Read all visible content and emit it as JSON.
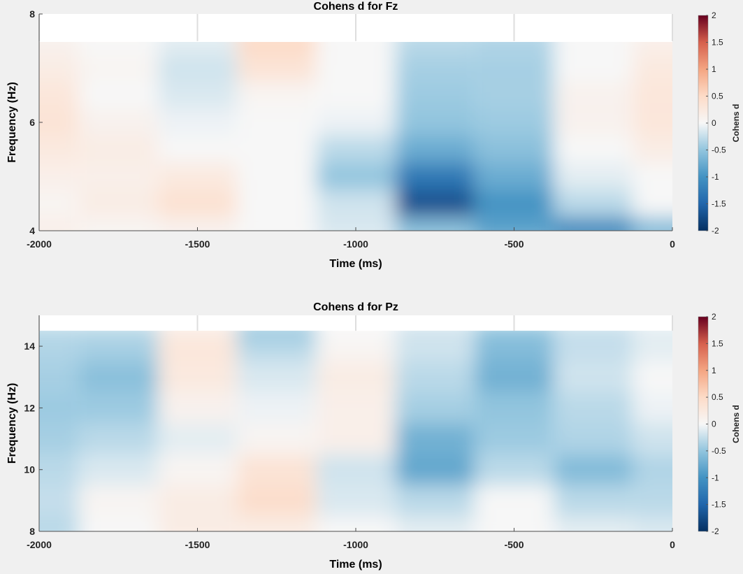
{
  "chart_data": [
    {
      "type": "heatmap",
      "title": "Cohens d for Fz",
      "xlabel": "Time (ms)",
      "ylabel": "Frequency (Hz)",
      "xlim": [
        -2000,
        0
      ],
      "ylim": [
        4,
        8
      ],
      "data_ylim": [
        4,
        7.5
      ],
      "xticks": [
        -2000,
        -1500,
        -1000,
        -500,
        0
      ],
      "yticks": [
        4,
        6,
        8
      ],
      "x": [
        -2000,
        -1750,
        -1500,
        -1250,
        -1000,
        -750,
        -500,
        -250,
        0
      ],
      "y": [
        4,
        4.5,
        5,
        5.5,
        6,
        6.5,
        7,
        7.5
      ],
      "z": [
        [
          0.15,
          0.05,
          0.1,
          0.0,
          -0.15,
          -0.55,
          -0.85,
          -1.1,
          -0.6
        ],
        [
          0.05,
          0.2,
          0.4,
          0.0,
          -0.2,
          -1.7,
          -1.0,
          -0.3,
          0.0
        ],
        [
          0.15,
          0.15,
          0.25,
          0.0,
          -0.5,
          -1.3,
          -0.75,
          -0.1,
          0.0
        ],
        [
          0.25,
          0.2,
          0.0,
          0.0,
          -0.3,
          -0.75,
          -0.55,
          0.0,
          0.2
        ],
        [
          0.35,
          0.1,
          -0.05,
          0.0,
          -0.05,
          -0.5,
          -0.45,
          0.1,
          0.3
        ],
        [
          0.3,
          0.0,
          -0.15,
          0.05,
          0.0,
          -0.45,
          -0.4,
          0.1,
          0.3
        ],
        [
          0.2,
          0.05,
          -0.2,
          0.35,
          0.0,
          -0.4,
          -0.4,
          0.0,
          0.25
        ],
        [
          0.1,
          0.0,
          -0.1,
          0.5,
          0.0,
          -0.3,
          -0.35,
          0.0,
          0.15
        ]
      ],
      "colorbar": {
        "label": "Cohens d",
        "ticks": [
          "2",
          "1.5",
          "1",
          "0.5",
          "0",
          "-0.5",
          "-1",
          "-1.5",
          "-2"
        ],
        "range": [
          -2,
          2
        ]
      }
    },
    {
      "type": "heatmap",
      "title": "Cohens d for Pz",
      "xlabel": "Time (ms)",
      "ylabel": "Frequency (Hz)",
      "xlim": [
        -2000,
        0
      ],
      "ylim": [
        8,
        15
      ],
      "data_ylim": [
        8,
        14.5
      ],
      "xticks": [
        -2000,
        -1500,
        -1000,
        -500,
        0
      ],
      "yticks": [
        8,
        10,
        12,
        14
      ],
      "x": [
        -2000,
        -1750,
        -1500,
        -1250,
        -1000,
        -750,
        -500,
        -250,
        0
      ],
      "y": [
        8,
        9,
        10,
        11,
        12,
        13,
        14,
        14.5
      ],
      "z": [
        [
          -0.3,
          0.0,
          0.2,
          0.2,
          0.0,
          -0.1,
          0.0,
          -0.1,
          -0.15
        ],
        [
          -0.25,
          0.05,
          0.2,
          0.45,
          -0.15,
          -0.3,
          0.0,
          -0.3,
          -0.3
        ],
        [
          -0.3,
          -0.15,
          0.05,
          0.35,
          -0.2,
          -0.8,
          -0.3,
          -0.6,
          -0.35
        ],
        [
          -0.4,
          -0.3,
          -0.1,
          0.05,
          0.15,
          -0.7,
          -0.45,
          -0.35,
          -0.2
        ],
        [
          -0.45,
          -0.45,
          0.1,
          -0.05,
          0.15,
          -0.4,
          -0.5,
          -0.3,
          -0.05
        ],
        [
          -0.4,
          -0.55,
          0.25,
          -0.15,
          0.2,
          -0.3,
          -0.7,
          -0.2,
          0.0
        ],
        [
          -0.35,
          -0.4,
          0.3,
          -0.3,
          0.05,
          -0.2,
          -0.6,
          -0.25,
          -0.1
        ],
        [
          -0.3,
          -0.3,
          0.2,
          -0.5,
          0.0,
          -0.2,
          -0.5,
          -0.25,
          -0.1
        ]
      ],
      "colorbar": {
        "label": "Cohens d",
        "ticks": [
          "2",
          "1.5",
          "1",
          "0.5",
          "0",
          "-0.5",
          "-1",
          "-1.5",
          "-2"
        ],
        "range": [
          -2,
          2
        ]
      }
    }
  ]
}
